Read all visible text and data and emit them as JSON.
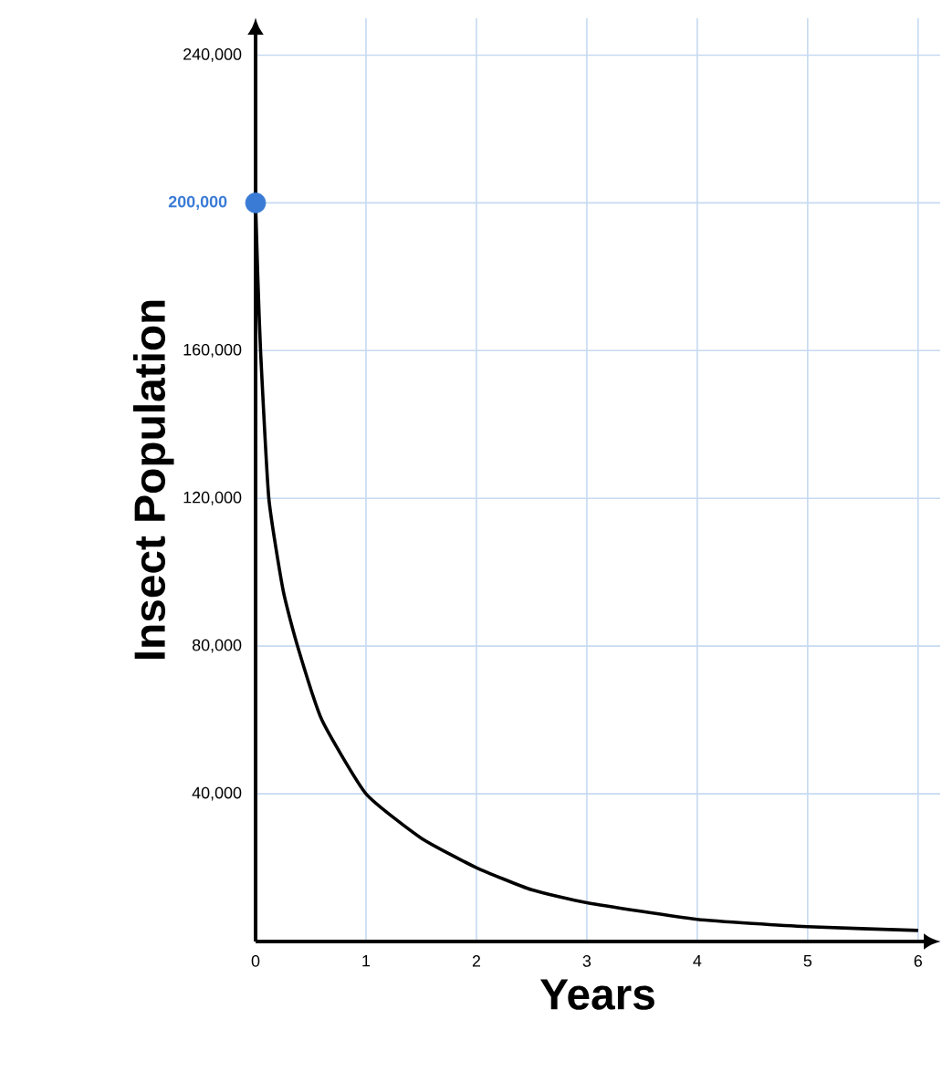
{
  "chart_data": {
    "type": "line",
    "xlabel": "Years",
    "ylabel": "Insect Population",
    "xlim": [
      0,
      6.2
    ],
    "ylim": [
      0,
      250000
    ],
    "xticks": [
      {
        "value": 0,
        "label": "0"
      },
      1,
      2,
      3,
      4,
      5,
      6
    ],
    "yticks": [
      {
        "value": 0,
        "label": null
      },
      {
        "value": 40000,
        "label": "40,000"
      },
      {
        "value": 80000,
        "label": "80,000"
      },
      {
        "value": 120000,
        "label": "120,000"
      },
      {
        "value": 160000,
        "label": "160,000"
      },
      {
        "value": 200000,
        "label": null
      },
      {
        "value": 240000,
        "label": "240,000"
      }
    ],
    "grid": true,
    "series": [
      {
        "color": "#000000",
        "x": [
          0,
          0.02,
          0.045,
          0.12,
          0.25,
          0.38,
          0.6,
          1,
          1.5,
          2,
          2.5,
          3,
          4,
          5,
          6
        ],
        "values": [
          200000,
          180000,
          160000,
          120000,
          95000,
          80000,
          60000,
          40000,
          28000,
          20000,
          14000,
          10500,
          6000,
          4000,
          3000
        ]
      },
      {
        "type": "scatter",
        "color": "#3a7bd5",
        "marker": "circle",
        "x": [
          0
        ],
        "values": [
          200000
        ]
      }
    ],
    "annotations": [
      {
        "text": "200,000",
        "x": 0,
        "y": 200000
      }
    ]
  }
}
